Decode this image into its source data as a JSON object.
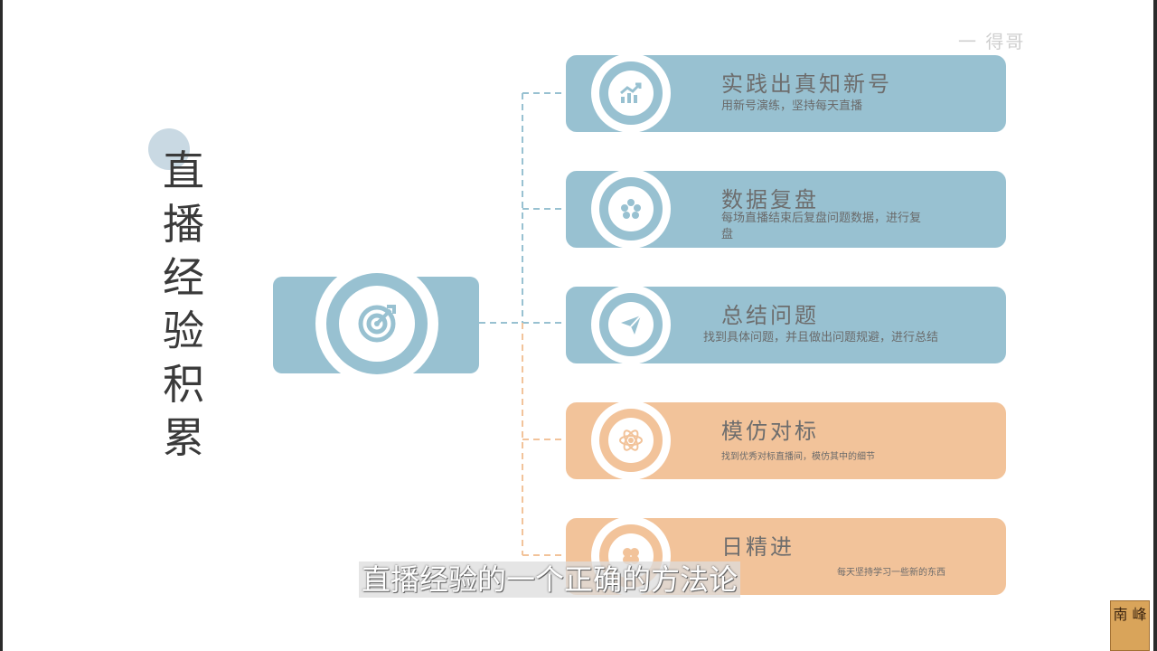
{
  "watermark_text": "一 得哥",
  "title": "直播经验积累",
  "cards": [
    {
      "title": "实践出真知新号",
      "desc": "用新号演练，坚持每天直播",
      "icon": "chart-trend-icon",
      "color": "#98c1d1"
    },
    {
      "title": "数据复盘",
      "desc": "每场直播结束后复盘问题数据，进行复盘",
      "icon": "film-reel-icon",
      "color": "#98c1d1"
    },
    {
      "title": "总结问题",
      "desc": "找到具体问题，并且做出问题规避，进行总结",
      "icon": "paper-plane-icon",
      "color": "#98c1d1"
    },
    {
      "title": "模仿对标",
      "desc": "找到优秀对标直播间，模仿其中的细节",
      "icon": "atom-icon",
      "color": "#f2c39a"
    },
    {
      "title": "日精进",
      "desc": "每天坚持学习一些新的东西",
      "icon": "clover-icon",
      "color": "#f2c39a"
    }
  ],
  "center_icon": "target-icon",
  "subtitle": "直播经验的一个正确的方法论",
  "seal_text": "南 峰",
  "colors": {
    "blue": "#98c1d1",
    "orange": "#f2c39a",
    "connector_blue": "#98c1d1",
    "connector_orange": "#f2c39a"
  }
}
